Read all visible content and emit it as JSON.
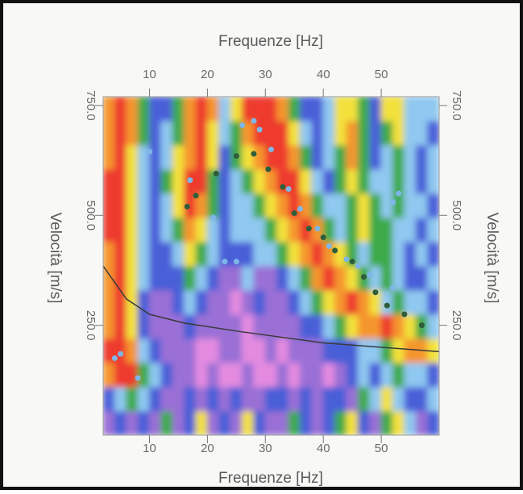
{
  "chart_data": {
    "type": "heatmap",
    "xlabel": "Frequenze [Hz]",
    "ylabel": "Velocità [m/s]",
    "xlim": [
      2,
      60
    ],
    "ylim": [
      0,
      770
    ],
    "xticks": [
      10,
      20,
      30,
      40,
      50
    ],
    "yticks": [
      {
        "value": 250,
        "label": "250.0"
      },
      {
        "value": 500,
        "label": "500.0"
      },
      {
        "value": 750,
        "label": "750.0"
      }
    ],
    "colorscale": [
      "#e48be0",
      "#9a6fd6",
      "#4a5fd8",
      "#8fc8f0",
      "#3daa4a",
      "#f3e13a",
      "#f5952e",
      "#ee3b2e"
    ],
    "heatmap": {
      "xbins": [
        2,
        4,
        6,
        8,
        10,
        12,
        14,
        16,
        18,
        20,
        22,
        24,
        26,
        28,
        30,
        32,
        34,
        36,
        38,
        40,
        42,
        44,
        46,
        48,
        50,
        52,
        54,
        56,
        58,
        60
      ],
      "ybins": [
        0,
        55,
        110,
        165,
        220,
        275,
        330,
        385,
        440,
        495,
        550,
        605,
        660,
        715,
        770
      ],
      "z": [
        [
          1,
          2,
          1,
          2,
          1,
          4,
          1,
          2,
          5,
          1,
          2,
          1,
          5,
          2,
          1,
          1,
          4,
          2,
          1,
          2,
          4,
          5,
          2,
          1,
          4,
          5,
          3,
          1,
          2
        ],
        [
          2,
          3,
          4,
          3,
          2,
          1,
          1,
          2,
          1,
          2,
          1,
          2,
          1,
          1,
          2,
          2,
          1,
          2,
          1,
          2,
          2,
          1,
          4,
          3,
          5,
          3,
          2,
          2,
          3
        ],
        [
          6,
          7,
          7,
          4,
          3,
          2,
          1,
          1,
          0,
          1,
          0,
          0,
          1,
          0,
          0,
          1,
          0,
          1,
          1,
          0,
          1,
          2,
          3,
          2,
          3,
          4,
          3,
          3,
          2
        ],
        [
          7,
          7,
          6,
          3,
          2,
          1,
          1,
          1,
          0,
          0,
          1,
          1,
          0,
          0,
          1,
          0,
          1,
          1,
          1,
          2,
          2,
          2,
          3,
          3,
          4,
          5,
          6,
          6,
          5
        ],
        [
          6,
          7,
          5,
          2,
          1,
          1,
          1,
          2,
          1,
          1,
          1,
          1,
          0,
          1,
          1,
          1,
          1,
          2,
          2,
          3,
          4,
          5,
          6,
          6,
          7,
          6,
          5,
          4,
          3
        ],
        [
          6,
          7,
          5,
          2,
          1,
          1,
          2,
          3,
          2,
          1,
          1,
          0,
          1,
          2,
          1,
          1,
          2,
          3,
          4,
          5,
          6,
          7,
          6,
          5,
          3,
          4,
          3,
          3,
          2
        ],
        [
          6,
          7,
          5,
          3,
          2,
          2,
          2,
          4,
          3,
          2,
          1,
          1,
          3,
          1,
          1,
          2,
          3,
          4,
          6,
          7,
          6,
          5,
          4,
          3,
          4,
          3,
          2,
          2,
          3
        ],
        [
          6,
          7,
          5,
          3,
          2,
          2,
          3,
          5,
          4,
          3,
          2,
          2,
          2,
          3,
          3,
          4,
          5,
          6,
          7,
          6,
          5,
          4,
          3,
          4,
          4,
          3,
          2,
          3,
          2
        ],
        [
          7,
          7,
          5,
          3,
          2,
          3,
          4,
          6,
          5,
          3,
          2,
          3,
          3,
          3,
          4,
          5,
          6,
          7,
          6,
          4,
          3,
          4,
          5,
          4,
          4,
          3,
          3,
          2,
          3
        ],
        [
          7,
          7,
          5,
          3,
          2,
          3,
          5,
          7,
          6,
          4,
          2,
          3,
          3,
          4,
          5,
          6,
          7,
          6,
          4,
          3,
          3,
          4,
          5,
          4,
          3,
          4,
          3,
          3,
          2
        ],
        [
          7,
          7,
          5,
          3,
          2,
          4,
          5,
          7,
          7,
          4,
          2,
          3,
          4,
          5,
          6,
          7,
          7,
          5,
          3,
          2,
          4,
          5,
          4,
          3,
          3,
          4,
          3,
          2,
          3
        ],
        [
          6,
          7,
          5,
          3,
          2,
          3,
          5,
          6,
          7,
          5,
          2,
          4,
          5,
          6,
          7,
          7,
          6,
          4,
          2,
          3,
          4,
          6,
          4,
          2,
          3,
          4,
          3,
          2,
          3
        ],
        [
          6,
          7,
          6,
          4,
          2,
          3,
          4,
          6,
          7,
          5,
          3,
          4,
          6,
          7,
          7,
          7,
          5,
          3,
          2,
          3,
          5,
          6,
          4,
          2,
          4,
          5,
          3,
          3,
          2
        ],
        [
          6,
          7,
          6,
          4,
          2,
          2,
          4,
          6,
          7,
          6,
          3,
          5,
          7,
          7,
          7,
          6,
          4,
          2,
          2,
          3,
          5,
          5,
          4,
          2,
          5,
          5,
          3,
          3,
          3
        ]
      ]
    },
    "series": [
      {
        "type": "line",
        "color": "#3a3a3a",
        "x": [
          2,
          6,
          10,
          16,
          26,
          40,
          60
        ],
        "values": [
          385,
          310,
          275,
          255,
          235,
          210,
          190
        ]
      },
      {
        "type": "scatter",
        "color": "#7fb6e8",
        "x": [
          10,
          17,
          21,
          23,
          25,
          26,
          28,
          29,
          31,
          34,
          36,
          39,
          41,
          44,
          46,
          48,
          52,
          52,
          53,
          4,
          5,
          8
        ],
        "values": [
          645,
          580,
          495,
          395,
          395,
          705,
          715,
          695,
          650,
          560,
          515,
          470,
          430,
          400,
          385,
          365,
          335,
          530,
          550,
          175,
          185,
          130
        ]
      },
      {
        "type": "scatter",
        "color": "#2f5e3a",
        "x": [
          16.5,
          18,
          21.5,
          25,
          28,
          30.5,
          33,
          35,
          37.5,
          40,
          42,
          45,
          47,
          49,
          51,
          54,
          57
        ],
        "values": [
          520,
          545,
          595,
          635,
          640,
          605,
          565,
          505,
          470,
          450,
          420,
          395,
          360,
          325,
          295,
          275,
          250
        ]
      }
    ]
  }
}
